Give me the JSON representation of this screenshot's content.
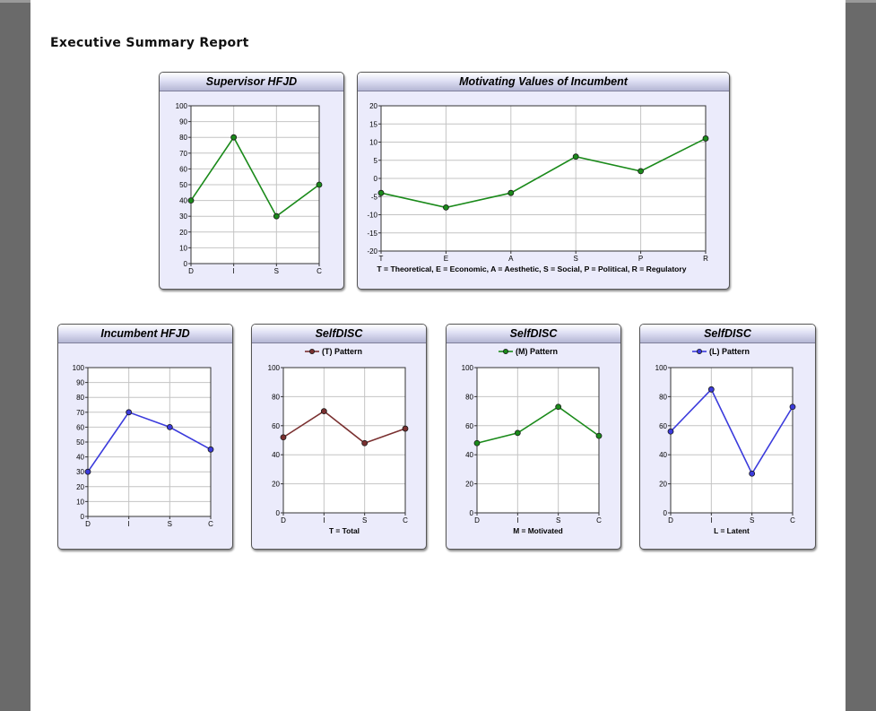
{
  "report": {
    "title": "Executive Summary Report"
  },
  "chart_data": [
    {
      "id": "sup",
      "type": "line",
      "title": "Supervisor HFJD",
      "categories": [
        "D",
        "I",
        "S",
        "C"
      ],
      "series": [
        {
          "values": [
            40,
            80,
            30,
            50
          ]
        }
      ],
      "ylim": [
        0,
        100
      ],
      "yticks": [
        0,
        10,
        20,
        30,
        40,
        50,
        60,
        70,
        80,
        90,
        100
      ],
      "color": "#1a8a1a",
      "grid": true
    },
    {
      "id": "mot",
      "type": "line",
      "title": "Motivating Values of Incumbent",
      "categories": [
        "T",
        "E",
        "A",
        "S",
        "P",
        "R"
      ],
      "series": [
        {
          "values": [
            -4,
            -8,
            -4,
            6,
            2,
            11
          ]
        }
      ],
      "ylim": [
        -20,
        20
      ],
      "yticks": [
        -20,
        -15,
        -10,
        -5,
        0,
        5,
        10,
        15,
        20
      ],
      "color": "#1a8a1a",
      "grid": true,
      "footnote": "T = Theoretical, E = Economic, A = Aesthetic, S = Social, P = Political, R = Regulatory"
    },
    {
      "id": "inc",
      "type": "line",
      "title": "Incumbent HFJD",
      "categories": [
        "D",
        "I",
        "S",
        "C"
      ],
      "series": [
        {
          "values": [
            30,
            70,
            60,
            45
          ]
        }
      ],
      "ylim": [
        0,
        100
      ],
      "yticks": [
        0,
        10,
        20,
        30,
        40,
        50,
        60,
        70,
        80,
        90,
        100
      ],
      "color": "#3b3bdc",
      "grid": true
    },
    {
      "id": "sdT",
      "type": "line",
      "title": "SelfDISC",
      "categories": [
        "D",
        "I",
        "S",
        "C"
      ],
      "series": [
        {
          "name": "(T) Pattern",
          "values": [
            52,
            70,
            48,
            58
          ]
        }
      ],
      "ylim": [
        0,
        100
      ],
      "yticks": [
        0,
        20,
        40,
        60,
        80,
        100
      ],
      "color": "#7a3030",
      "grid": true,
      "footnote": "T = Total"
    },
    {
      "id": "sdM",
      "type": "line",
      "title": "SelfDISC",
      "categories": [
        "D",
        "I",
        "S",
        "C"
      ],
      "series": [
        {
          "name": "(M) Pattern",
          "values": [
            48,
            55,
            73,
            53
          ]
        }
      ],
      "ylim": [
        0,
        100
      ],
      "yticks": [
        0,
        20,
        40,
        60,
        80,
        100
      ],
      "color": "#1a8a1a",
      "grid": true,
      "footnote": "M = Motivated"
    },
    {
      "id": "sdL",
      "type": "line",
      "title": "SelfDISC",
      "categories": [
        "D",
        "I",
        "S",
        "C"
      ],
      "series": [
        {
          "name": "(L) Pattern",
          "values": [
            56,
            85,
            27,
            73
          ]
        }
      ],
      "ylim": [
        0,
        100
      ],
      "yticks": [
        0,
        20,
        40,
        60,
        80,
        100
      ],
      "color": "#3b3bdc",
      "grid": true,
      "footnote": "L = Latent"
    }
  ]
}
